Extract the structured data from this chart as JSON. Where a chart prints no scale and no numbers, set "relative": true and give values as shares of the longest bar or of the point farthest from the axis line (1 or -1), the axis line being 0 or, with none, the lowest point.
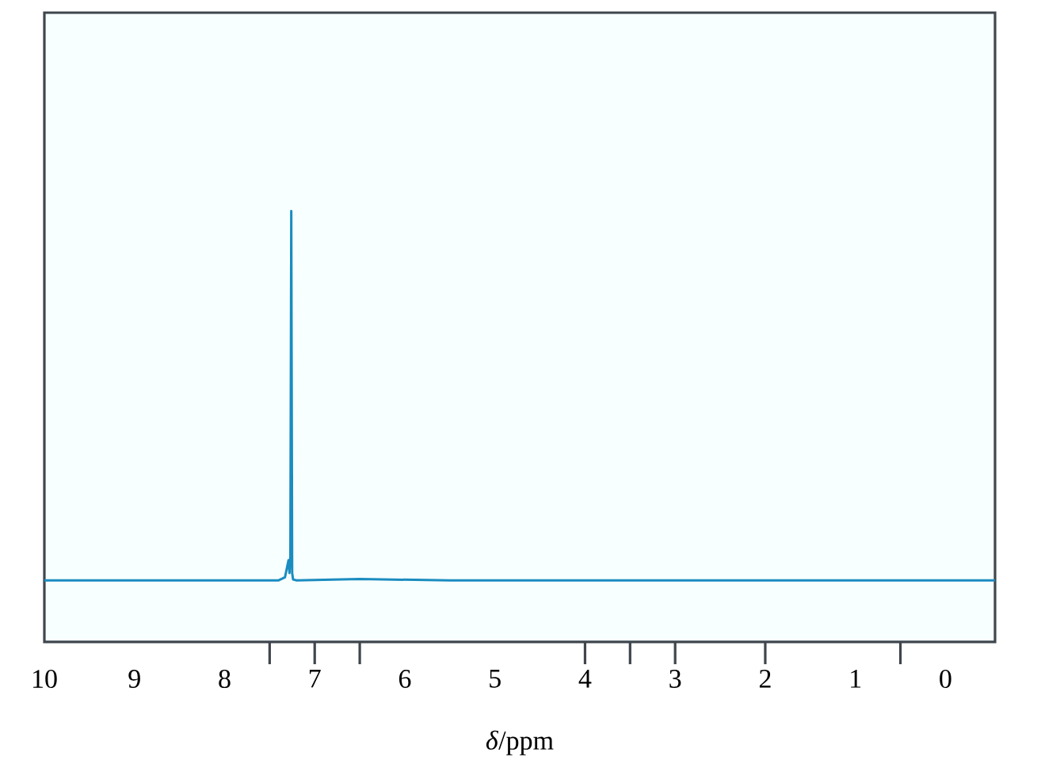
{
  "chart_data": {
    "type": "line",
    "relative": true,
    "xlabel": "*δ*/ppm",
    "xlim": [
      10,
      -0.55
    ],
    "xticks": [
      10,
      9,
      8,
      7,
      6,
      5,
      4,
      3,
      2,
      1,
      0,
      {
        "value": 7.5,
        "label": null
      },
      {
        "value": 7,
        "label": null
      },
      {
        "value": 6.5,
        "label": null
      },
      {
        "value": 4,
        "label": null
      },
      {
        "value": 3.5,
        "label": null
      },
      {
        "value": 3,
        "label": null
      },
      {
        "value": 2,
        "label": null
      },
      {
        "value": 0.5,
        "label": null
      }
    ],
    "x": [
      10,
      8.5,
      7.4,
      7.33,
      7.3,
      7.29,
      7.28,
      7.27,
      7.26,
      7.25,
      7.24,
      7.2,
      6.5,
      5.5,
      4,
      2,
      -0.55
    ],
    "series": [
      {
        "color": "#1a8cc0",
        "values": [
          0.143,
          0.143,
          0.143,
          0.15,
          0.18,
          0.19,
          0.16,
          0.2,
          1,
          0.16,
          0.145,
          0.143,
          0.146,
          0.143,
          0.143,
          0.143,
          0.143
        ]
      }
    ],
    "marker": "none",
    "line_style": "solid"
  }
}
